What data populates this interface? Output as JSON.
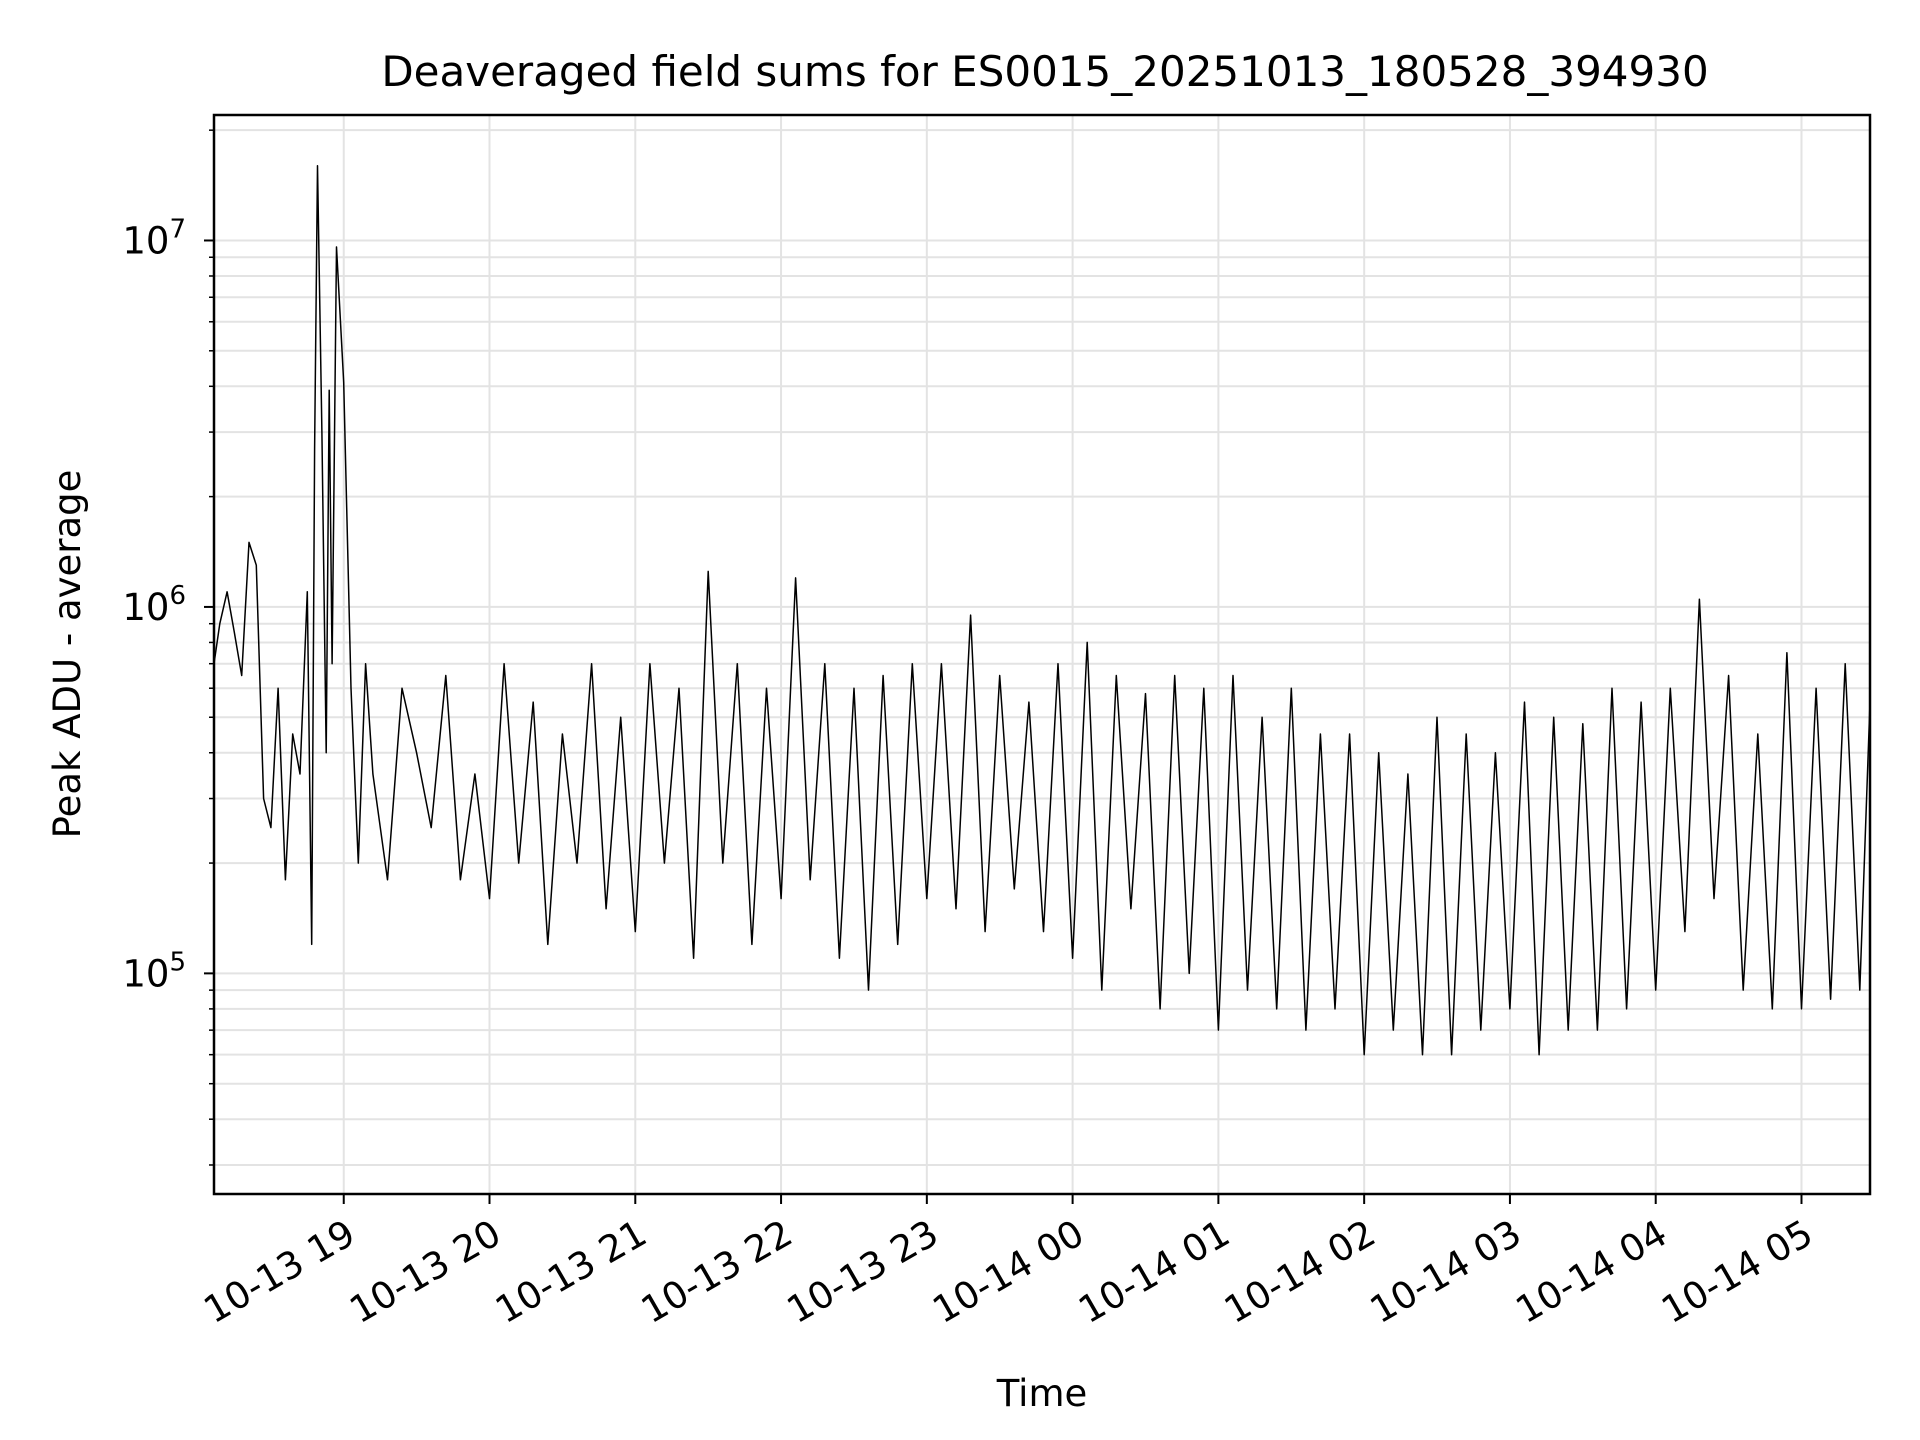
{
  "chart_data": {
    "type": "line",
    "title": "Deaveraged field sums for ES0015_20251013_180528_394930",
    "xlabel": "Time",
    "ylabel": "Peak ADU - average",
    "yscale": "log",
    "ylim": [
      25000,
      22000000
    ],
    "xlim_hours_from_10_13_18_00": [
      0.11,
      11.47
    ],
    "grid": true,
    "line_color": "#000000",
    "x_ticks": [
      {
        "label": "10-13 19",
        "hours": 1
      },
      {
        "label": "10-13 20",
        "hours": 2
      },
      {
        "label": "10-13 21",
        "hours": 3
      },
      {
        "label": "10-13 22",
        "hours": 4
      },
      {
        "label": "10-13 23",
        "hours": 5
      },
      {
        "label": "10-14 00",
        "hours": 6
      },
      {
        "label": "10-14 01",
        "hours": 7
      },
      {
        "label": "10-14 02",
        "hours": 8
      },
      {
        "label": "10-14 03",
        "hours": 9
      },
      {
        "label": "10-14 04",
        "hours": 10
      },
      {
        "label": "10-14 05",
        "hours": 11
      }
    ],
    "y_ticks": [
      {
        "base": "10",
        "exp": "5",
        "value": 100000
      },
      {
        "base": "10",
        "exp": "6",
        "value": 1000000
      },
      {
        "base": "10",
        "exp": "7",
        "value": 10000000
      }
    ],
    "series": [
      {
        "name": "Peak ADU - average",
        "x_hours": [
          0.11,
          0.15,
          0.2,
          0.25,
          0.3,
          0.35,
          0.4,
          0.45,
          0.5,
          0.55,
          0.6,
          0.65,
          0.7,
          0.75,
          0.78,
          0.8,
          0.82,
          0.85,
          0.88,
          0.9,
          0.92,
          0.95,
          1.0,
          1.05,
          1.1,
          1.15,
          1.2,
          1.3,
          1.4,
          1.5,
          1.6,
          1.7,
          1.8,
          1.9,
          2.0,
          2.1,
          2.2,
          2.3,
          2.4,
          2.5,
          2.6,
          2.7,
          2.8,
          2.9,
          3.0,
          3.1,
          3.2,
          3.3,
          3.4,
          3.5,
          3.6,
          3.7,
          3.8,
          3.9,
          4.0,
          4.1,
          4.2,
          4.3,
          4.4,
          4.5,
          4.6,
          4.7,
          4.8,
          4.9,
          5.0,
          5.1,
          5.2,
          5.3,
          5.4,
          5.5,
          5.6,
          5.7,
          5.8,
          5.9,
          6.0,
          6.1,
          6.2,
          6.3,
          6.4,
          6.5,
          6.6,
          6.7,
          6.8,
          6.9,
          7.0,
          7.1,
          7.2,
          7.3,
          7.4,
          7.5,
          7.6,
          7.7,
          7.8,
          7.9,
          8.0,
          8.1,
          8.2,
          8.3,
          8.4,
          8.5,
          8.6,
          8.7,
          8.8,
          8.9,
          9.0,
          9.1,
          9.2,
          9.3,
          9.4,
          9.5,
          9.6,
          9.7,
          9.8,
          9.9,
          10.0,
          10.1,
          10.2,
          10.3,
          10.4,
          10.5,
          10.6,
          10.7,
          10.8,
          10.9,
          11.0,
          11.1,
          11.2,
          11.3,
          11.4,
          11.47
        ],
        "values": [
          700000,
          900000,
          1100000,
          850000,
          650000,
          1500000,
          1300000,
          300000,
          250000,
          600000,
          180000,
          450000,
          350000,
          1100000,
          120000,
          2700000,
          16000000,
          3000000,
          400000,
          3900000,
          700000,
          9600000,
          4100000,
          600000,
          200000,
          700000,
          350000,
          180000,
          600000,
          400000,
          250000,
          650000,
          180000,
          350000,
          160000,
          700000,
          200000,
          550000,
          120000,
          450000,
          200000,
          700000,
          150000,
          500000,
          130000,
          700000,
          200000,
          600000,
          110000,
          1250000,
          200000,
          700000,
          120000,
          600000,
          160000,
          1200000,
          180000,
          700000,
          110000,
          600000,
          90000,
          650000,
          120000,
          700000,
          160000,
          700000,
          150000,
          950000,
          130000,
          650000,
          170000,
          550000,
          130000,
          700000,
          110000,
          800000,
          90000,
          650000,
          150000,
          580000,
          80000,
          650000,
          100000,
          600000,
          70000,
          650000,
          90000,
          500000,
          80000,
          600000,
          70000,
          450000,
          80000,
          450000,
          60000,
          400000,
          70000,
          350000,
          60000,
          500000,
          60000,
          450000,
          70000,
          400000,
          80000,
          550000,
          60000,
          500000,
          70000,
          480000,
          70000,
          600000,
          80000,
          550000,
          90000,
          600000,
          130000,
          1050000,
          160000,
          650000,
          90000,
          450000,
          80000,
          750000,
          80000,
          600000,
          85000,
          700000,
          90000,
          550000
        ]
      }
    ]
  }
}
